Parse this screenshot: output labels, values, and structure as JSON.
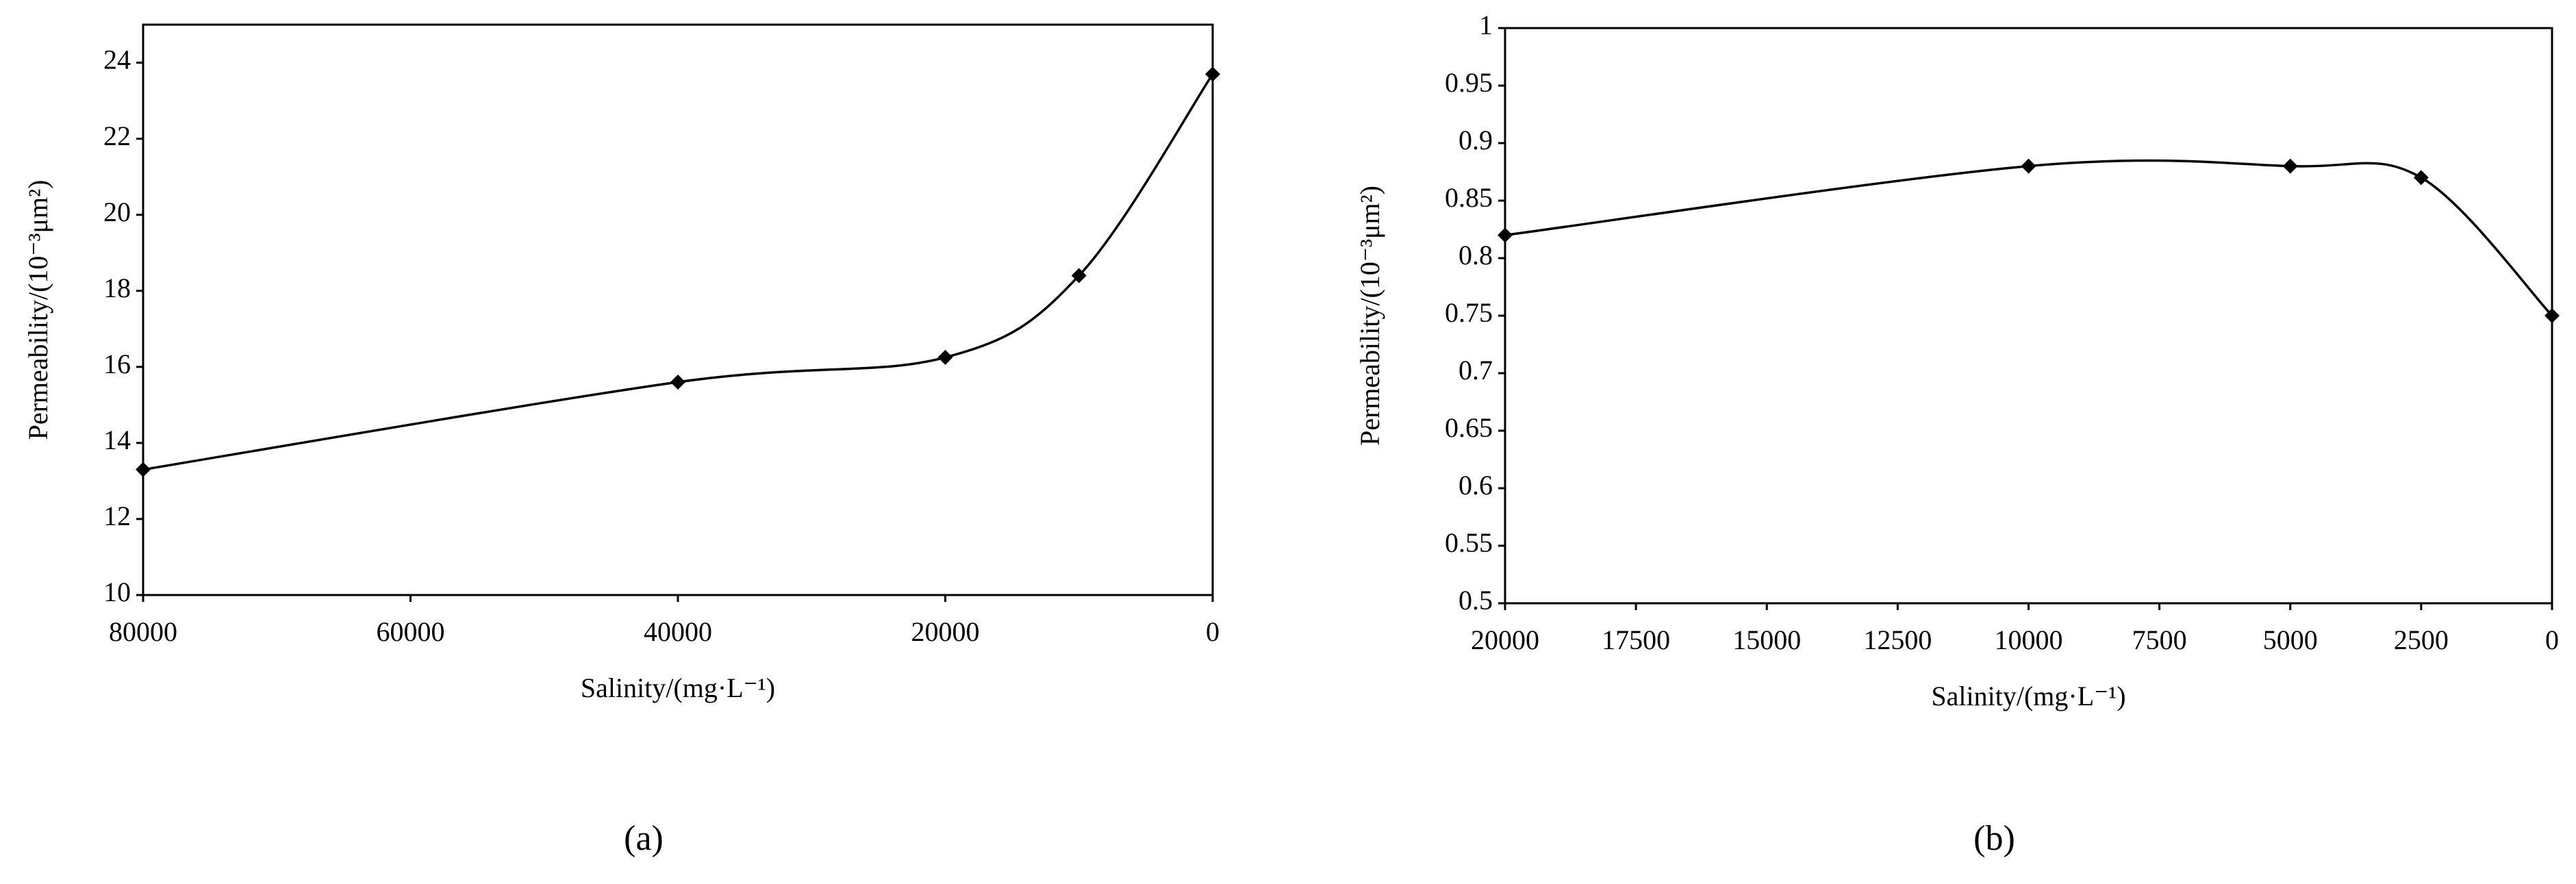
{
  "chart_data": [
    {
      "type": "line",
      "label": "(a)",
      "x_label": "Salinity/(mg·L⁻¹)",
      "y_label": "Permeability/(10⁻³μm²)",
      "x": [
        80000,
        40000,
        20000,
        10000,
        0
      ],
      "values": [
        13.3,
        15.6,
        16.25,
        18.4,
        23.7
      ],
      "color": "#000000",
      "xlim": [
        80000,
        0
      ],
      "xticks": [
        80000,
        60000,
        40000,
        20000,
        0
      ],
      "ylim": [
        10,
        25
      ],
      "yticks": [
        10,
        12,
        14,
        16,
        18,
        20,
        22,
        24
      ],
      "smooth": true,
      "marker": "diamond"
    },
    {
      "type": "line",
      "label": "(b)",
      "x_label": "Salinity/(mg·L⁻¹)",
      "y_label": "Permeability/(10⁻³μm²)",
      "x": [
        20000,
        10000,
        5000,
        2500,
        0
      ],
      "values": [
        0.82,
        0.88,
        0.88,
        0.87,
        0.75
      ],
      "color": "#000000",
      "xlim": [
        20000,
        0
      ],
      "xticks": [
        20000,
        17500,
        15000,
        12500,
        10000,
        7500,
        5000,
        2500,
        0
      ],
      "ylim": [
        0.5,
        1
      ],
      "yticks": [
        0.5,
        0.55,
        0.6,
        0.65,
        0.7,
        0.75,
        0.8,
        0.85,
        0.9,
        0.95,
        1
      ],
      "smooth": true,
      "marker": "diamond"
    }
  ]
}
